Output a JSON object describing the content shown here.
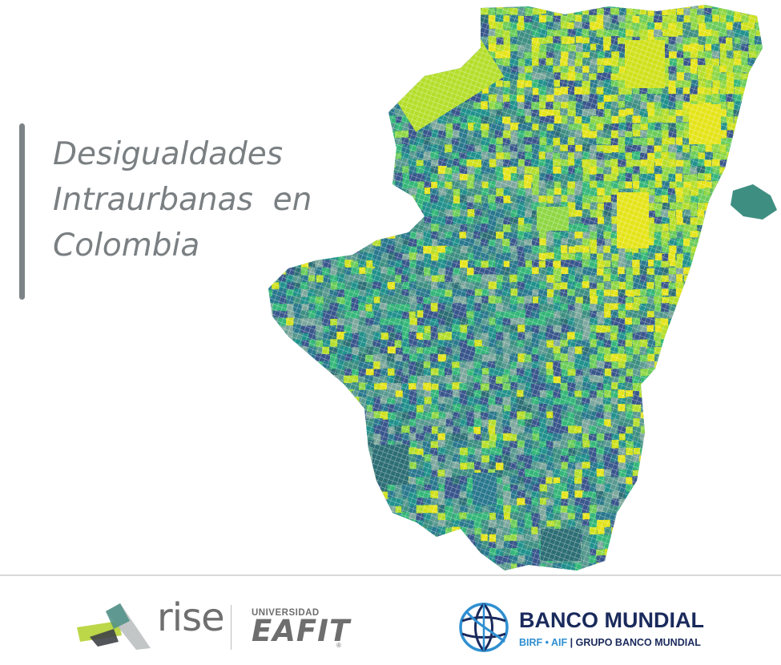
{
  "title": {
    "line1": "Desigualdades",
    "line2": "Intraurbanas  en",
    "line3": "Colombia"
  },
  "map": {
    "palette": [
      "#39568c",
      "#2a788e",
      "#21918c",
      "#3e8f82",
      "#5a9a91",
      "#7ea89e",
      "#35b779",
      "#6ccd5a",
      "#8fd744",
      "#b5de2b",
      "#d0e11c",
      "#e5e419",
      "#2d6e75"
    ],
    "icon": "city-choropleth-map"
  },
  "footer": {
    "rise": {
      "text": "rise",
      "icon": "rise-logo-icon"
    },
    "eafit": {
      "top": "UNIVERSIDAD",
      "main": "EAFIT",
      "reg": "®"
    },
    "worldbank": {
      "name": "BANCO MUNDIAL",
      "sub_blue": "BIRF • AIF",
      "sub_rest": "| GRUPO BANCO MUNDIAL",
      "icon": "world-bank-globe-icon"
    }
  }
}
